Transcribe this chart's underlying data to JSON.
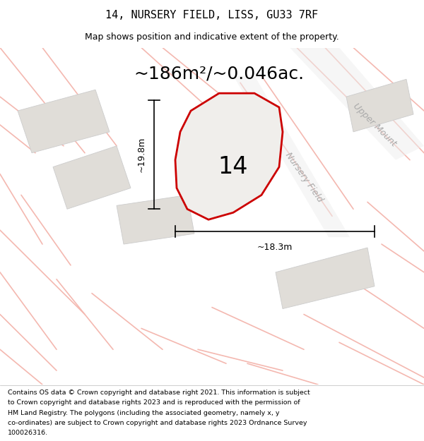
{
  "title": "14, NURSERY FIELD, LISS, GU33 7RF",
  "subtitle": "Map shows position and indicative extent of the property.",
  "area_text": "~186m²/~0.046ac.",
  "plot_number": "14",
  "dim_width": "~18.3m",
  "dim_height": "~19.8m",
  "road_label1": "Nursery Field",
  "road_label2": "Upper Mount",
  "footer_lines": [
    "Contains OS data © Crown copyright and database right 2021. This information is subject",
    "to Crown copyright and database rights 2023 and is reproduced with the permission of",
    "HM Land Registry. The polygons (including the associated geometry, namely x, y",
    "co-ordinates) are subject to Crown copyright and database rights 2023 Ordnance Survey",
    "100026316."
  ],
  "bg_color": "#f8f8f8",
  "plot_fill": "#f0eeeb",
  "plot_border": "#cc0000",
  "road_line_color": "#f4b8b0",
  "building_fill": "#e0ddd8",
  "building_edge": "#cccccc",
  "road_fill": "#eeeeee",
  "road_edge": "#dddddd"
}
